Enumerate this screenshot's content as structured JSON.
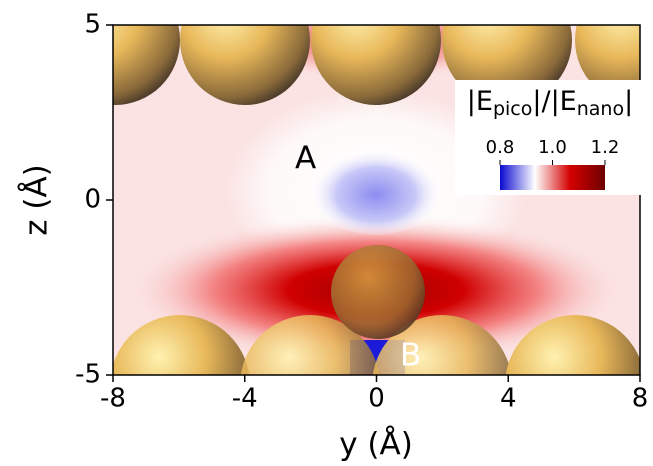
{
  "chart_data": {
    "type": "heatmap",
    "xlabel": "y (Å)",
    "ylabel": "z (Å)",
    "xlim": [
      -8,
      8
    ],
    "xticks": [
      -8,
      -4,
      0,
      4,
      8
    ],
    "ylim": [
      -5,
      5
    ],
    "yticks": [
      -5,
      0,
      5
    ],
    "colorbar": {
      "title_parts": [
        "|E",
        "pico",
        "|/|E",
        "nano",
        "|"
      ],
      "lim": [
        0.8,
        1.2
      ],
      "ticks": [
        0.8,
        {
          "value": 1,
          "label": "1.0"
        },
        1.2
      ],
      "colors": [
        "#0a0ad0",
        "#ffffff",
        "#d40000",
        "#6e0000"
      ]
    },
    "annotations": [
      "A",
      "B"
    ]
  }
}
